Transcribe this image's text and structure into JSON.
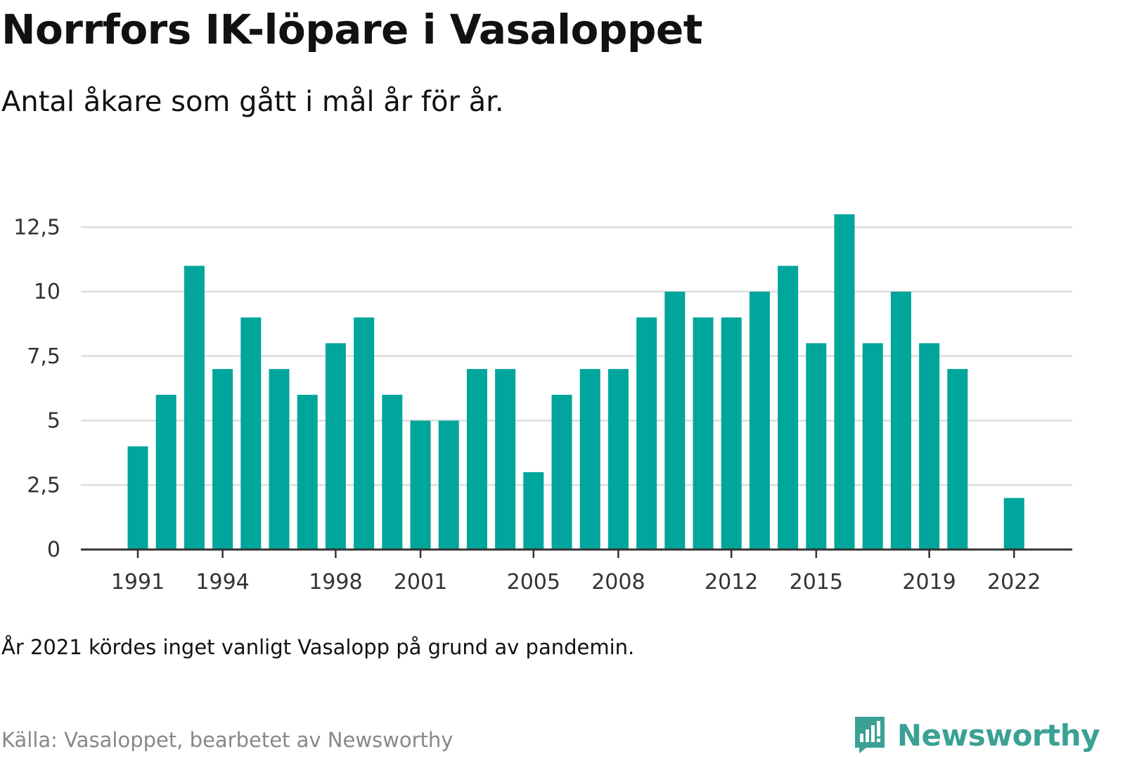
{
  "header": {
    "title": "Norrfors IK-löpare i Vasaloppet",
    "subtitle": "Antal åkare som gått i mål år för år."
  },
  "footer": {
    "note": "År 2021 kördes inget vanligt Vasalopp på grund av pandemin.",
    "source": "Källa: Vasaloppet, bearbetet av Newsworthy",
    "brand_name": "Newsworthy",
    "brand_icon": "bar-chart-speech-bubble-icon"
  },
  "colors": {
    "bar": "#00a59b",
    "grid": "#dddddd",
    "axis": "#333333",
    "brand": "#3aa194"
  },
  "chart_data": {
    "type": "bar",
    "title": "Norrfors IK-löpare i Vasaloppet",
    "subtitle": "Antal åkare som gått i mål år för år.",
    "xlabel": "",
    "ylabel": "",
    "categories": [
      1991,
      1992,
      1993,
      1994,
      1995,
      1996,
      1997,
      1998,
      1999,
      2000,
      2001,
      2002,
      2003,
      2004,
      2005,
      2006,
      2007,
      2008,
      2009,
      2010,
      2011,
      2012,
      2013,
      2014,
      2015,
      2016,
      2017,
      2018,
      2019,
      2020,
      2021,
      2022
    ],
    "values": [
      4,
      6,
      11,
      7,
      9,
      7,
      6,
      8,
      9,
      6,
      5,
      5,
      7,
      7,
      3,
      6,
      7,
      7,
      9,
      10,
      9,
      9,
      10,
      11,
      8,
      13,
      8,
      10,
      8,
      7,
      null,
      2
    ],
    "xticks": [
      1991,
      1994,
      1998,
      2001,
      2005,
      2008,
      2012,
      2015,
      2019,
      2022
    ],
    "yticks": [
      0,
      2.5,
      5,
      7.5,
      10,
      12.5
    ],
    "ytick_labels": [
      "0",
      "2,5",
      "5",
      "7,5",
      "10",
      "12,5"
    ],
    "ylim": [
      0,
      13.5
    ],
    "grid": true,
    "legend": "none"
  }
}
